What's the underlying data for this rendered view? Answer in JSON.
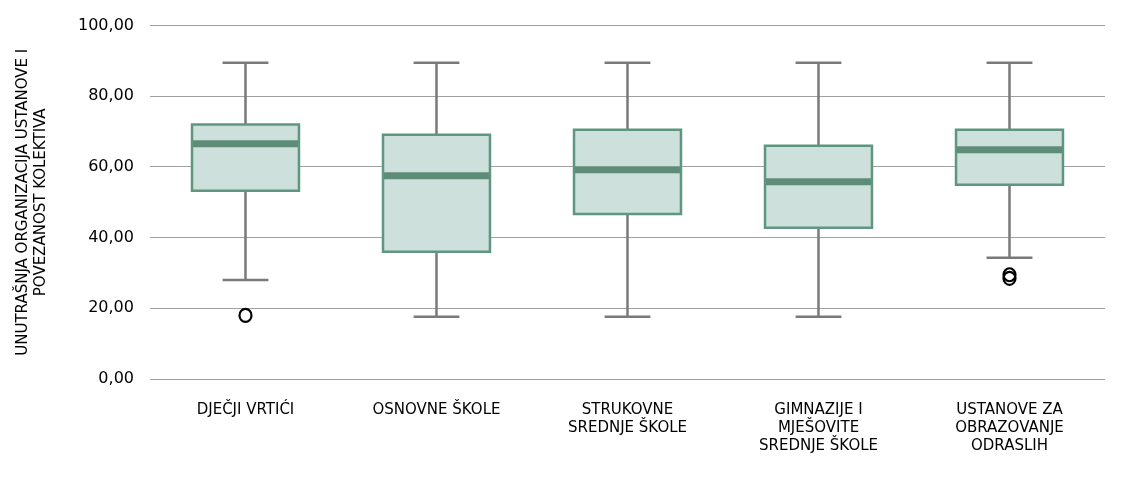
{
  "chart_data": {
    "type": "box",
    "ylabel": "UNUTRAŠNJA ORGANIZACIJA USTANOVE I POVEZANOST KOLEKTIVA",
    "categories": [
      "DJEČJI VRTIĆI",
      "OSNOVNE ŠKOLE",
      "STRUKOVNE SREDNJE ŠKOLE",
      "GIMNAZIJE I MJEŠOVITE SREDNJE ŠKOLE",
      "USTANOVE ZA OBRAZOVANJE ODRASLIH"
    ],
    "series": [
      {
        "color": "#cde0dc",
        "boxes": [
          {
            "low": 28,
            "q1": 53.3,
            "median": 66.6,
            "q3": 72,
            "high": 89.5,
            "outliers": [
              18
            ]
          },
          {
            "low": 17.6,
            "q1": 36,
            "median": 57.5,
            "q3": 69.1,
            "high": 89.5
          },
          {
            "low": 17.6,
            "q1": 46.7,
            "median": 59.2,
            "q3": 70.5,
            "high": 89.5
          },
          {
            "low": 17.6,
            "q1": 42.8,
            "median": 55.8,
            "q3": 66,
            "high": 89.5
          },
          {
            "low": 34.3,
            "q1": 55,
            "median": 64.9,
            "q3": 70.5,
            "high": 89.5,
            "outliers": [
              28.5,
              29.5
            ]
          }
        ]
      }
    ],
    "ylim": [
      0,
      100
    ],
    "yticks": [
      {
        "value": 0,
        "label": "0,00"
      },
      {
        "value": 20,
        "label": "20,00"
      },
      {
        "value": 40,
        "label": "40,00"
      },
      {
        "value": 60,
        "label": "60,00"
      },
      {
        "value": 80,
        "label": "80,00"
      },
      {
        "value": 100,
        "label": "100,00"
      }
    ],
    "grid": "y",
    "legend": false
  }
}
